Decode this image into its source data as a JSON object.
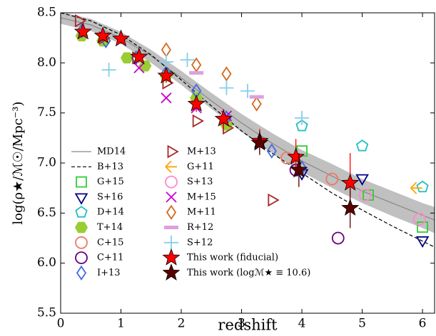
{
  "chart_data": {
    "type": "scatter",
    "xlabel": "redshift",
    "ylabel": "log(ρ★/ℳ☉/Mpc⁻³)",
    "xlim": [
      0,
      6.2
    ],
    "ylim": [
      5.5,
      8.5
    ],
    "xticks": [
      0,
      1,
      2,
      3,
      4,
      5,
      6
    ],
    "yticks": [
      5.5,
      {
        "value": 6,
        "label": "6.0"
      },
      6.5,
      {
        "value": 7,
        "label": "7.0"
      },
      7.5,
      {
        "value": 8,
        "label": "8.0"
      },
      8.5
    ],
    "series": [
      {
        "name": "MD14",
        "kind": "line",
        "style": "solid",
        "color": "#888888",
        "x": [
          0,
          0.5,
          1,
          1.5,
          2,
          2.5,
          3,
          3.5,
          4,
          4.5,
          5,
          5.5,
          6,
          6.2
        ],
        "values": [
          8.45,
          8.38,
          8.25,
          8.07,
          7.85,
          7.62,
          7.4,
          7.2,
          7.02,
          6.87,
          6.72,
          6.6,
          6.48,
          6.43
        ],
        "lower": [
          8.39,
          8.32,
          8.19,
          8.0,
          7.78,
          7.54,
          7.31,
          7.1,
          6.91,
          6.75,
          6.6,
          6.47,
          6.35,
          6.3
        ],
        "upper": [
          8.51,
          8.44,
          8.31,
          8.13,
          7.92,
          7.7,
          7.49,
          7.3,
          7.13,
          6.99,
          6.84,
          6.72,
          6.6,
          6.56
        ]
      },
      {
        "name": "B+13",
        "kind": "line",
        "style": "dashed",
        "color": "#000000",
        "x": [
          0,
          0.5,
          1,
          1.5,
          2,
          2.5,
          3,
          3.5,
          4,
          4.5,
          5,
          5.5,
          6,
          6.2
        ],
        "values": [
          8.5,
          8.42,
          8.28,
          8.08,
          7.83,
          7.57,
          7.32,
          7.1,
          6.9,
          6.7,
          6.53,
          6.37,
          6.22,
          6.16
        ]
      },
      {
        "name": "G+15",
        "marker": "square",
        "color": "#33cc33",
        "x": [
          4.0,
          5.1,
          6.0
        ],
        "values": [
          7.12,
          6.68,
          6.36
        ]
      },
      {
        "name": "S+16",
        "marker": "tridown",
        "color": "#000080",
        "x": [
          4.0,
          5.0,
          6.0
        ],
        "values": [
          6.9,
          6.85,
          6.23
        ]
      },
      {
        "name": "D+14",
        "marker": "pentagon",
        "color": "#20c0c0",
        "x": [
          4.0,
          5.0,
          6.0
        ],
        "values": [
          7.37,
          7.17,
          6.76
        ]
      },
      {
        "name": "T+14",
        "marker": "hexagon",
        "color": "#9acd32",
        "filled": true,
        "x": [
          0.35,
          0.7,
          1.1,
          1.4,
          1.75,
          2.25,
          2.75
        ],
        "values": [
          8.27,
          8.22,
          8.05,
          7.97,
          7.87,
          7.65,
          7.38
        ]
      },
      {
        "name": "C+15",
        "marker": "circle",
        "color": "#f07860",
        "x": [
          3.75,
          4.5
        ],
        "values": [
          7.05,
          6.84
        ]
      },
      {
        "name": "C+11",
        "marker": "circle",
        "color": "#660080",
        "x": [
          3.9,
          4.6
        ],
        "values": [
          6.93,
          6.25
        ]
      },
      {
        "name": "I+13",
        "marker": "diamond",
        "color": "#4169e1",
        "x": [
          0.35,
          0.75,
          1.25,
          1.75,
          2.25,
          2.75,
          3.5,
          4.0
        ],
        "values": [
          8.32,
          8.22,
          8.05,
          7.9,
          7.72,
          7.45,
          7.12,
          6.95
        ]
      },
      {
        "name": "M+13",
        "marker": "triright",
        "color": "#a52a2a",
        "x": [
          0.3,
          0.7,
          1.25,
          1.75,
          2.25,
          2.75,
          3.5
        ],
        "values": [
          8.42,
          8.25,
          8.05,
          7.8,
          7.42,
          7.35,
          6.63
        ]
      },
      {
        "name": "G+11",
        "marker": "trileft",
        "color": "#ffa500",
        "x": [
          5.9
        ],
        "values": [
          6.75
        ]
      },
      {
        "name": "S+13",
        "marker": "circle",
        "color": "#ff88cc",
        "x": [
          5.05,
          5.95
        ],
        "values": [
          6.68,
          6.44
        ]
      },
      {
        "name": "M+15",
        "marker": "cross",
        "color": "#cc00cc",
        "x": [
          1.3,
          1.75,
          2.25,
          2.75
        ],
        "values": [
          7.95,
          7.65,
          7.55,
          7.47
        ]
      },
      {
        "name": "M+11",
        "marker": "diamond",
        "color": "#d2691e",
        "x": [
          1.75,
          2.25,
          2.75,
          3.25
        ],
        "values": [
          8.13,
          7.98,
          7.89,
          7.59
        ]
      },
      {
        "name": "R+12",
        "marker": "hbar",
        "color": "#dda0dd",
        "x": [
          2.25,
          3.25
        ],
        "values": [
          7.9,
          7.66
        ]
      },
      {
        "name": "S+12",
        "marker": "plus",
        "color": "#87ceeb",
        "x": [
          0.8,
          1.75,
          2.1,
          2.75,
          3.1,
          4.0
        ],
        "values": [
          7.93,
          8.01,
          8.03,
          7.75,
          7.72,
          7.45
        ]
      },
      {
        "name": "This work (fiducial)",
        "marker": "star",
        "color": "#ff0000",
        "filled": true,
        "x": [
          0.37,
          0.7,
          1.0,
          1.3,
          1.75,
          2.25,
          2.7,
          3.3,
          3.9,
          4.8
        ],
        "values": [
          8.31,
          8.27,
          8.24,
          8.06,
          7.87,
          7.59,
          7.44,
          7.22,
          7.06,
          6.8
        ],
        "yerr": [
          0.05,
          0.05,
          0.05,
          0.06,
          0.07,
          0.08,
          0.1,
          0.12,
          0.18,
          0.3
        ]
      },
      {
        "name": "This work (logℳ★ ≡ 10.6)",
        "marker": "star",
        "color": "#5a0000",
        "filled": true,
        "x": [
          3.3,
          3.95,
          4.8
        ],
        "values": [
          7.2,
          6.93,
          6.55
        ],
        "yerr": [
          0.12,
          0.17,
          0.2
        ]
      }
    ]
  }
}
